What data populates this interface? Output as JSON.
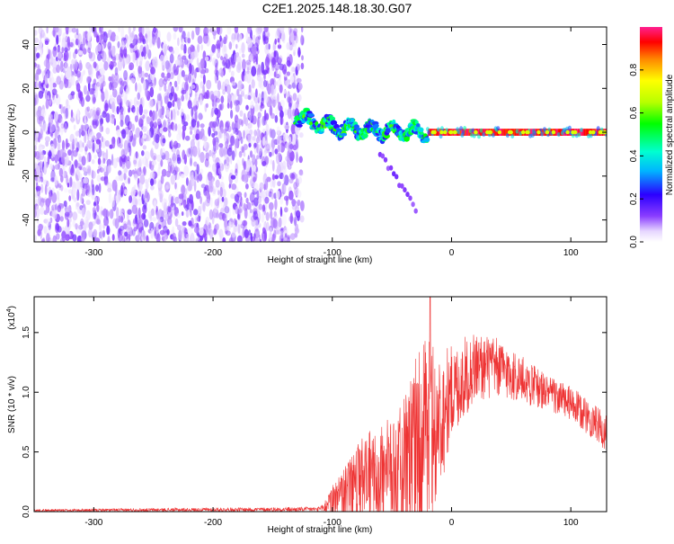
{
  "page": {
    "title": "C2E1.2025.148.18.30.G07"
  },
  "chart_data": [
    {
      "type": "heatmap",
      "name": "spectrogram",
      "xlabel": "Height of straight line (km)",
      "ylabel": "Frequency (Hz)",
      "xlim": [
        -350,
        130
      ],
      "ylim": [
        -50,
        48
      ],
      "xticks": [
        -300,
        -200,
        -100,
        0,
        100
      ],
      "yticks": [
        -40,
        -20,
        0,
        20,
        40
      ],
      "colorbar": {
        "label": "Normalized spectral amplitude",
        "range": [
          0,
          1
        ],
        "ticks": [
          0.0,
          0.2,
          0.4,
          0.6,
          0.8
        ]
      },
      "regions": [
        {
          "description": "scattered low-amplitude noise",
          "x_range": [
            -350,
            -125
          ],
          "y_range": [
            -50,
            48
          ],
          "amplitude": [
            0.02,
            0.15
          ]
        },
        {
          "description": "signal band with fluctuating frequency",
          "x_range": [
            -130,
            -20
          ],
          "y_range": [
            -5,
            10
          ],
          "amplitude": [
            0.2,
            0.6
          ]
        },
        {
          "description": "stable carrier near 0 Hz",
          "x_range": [
            -20,
            130
          ],
          "y_range": [
            -3,
            3
          ],
          "amplitude": [
            0.6,
            1.0
          ]
        },
        {
          "description": "descending streak",
          "x_range": [
            -60,
            -30
          ],
          "y_range": [
            -35,
            -10
          ],
          "amplitude": [
            0.1,
            0.15
          ]
        }
      ]
    },
    {
      "type": "line",
      "name": "snr",
      "xlabel": "Height of straight line (km)",
      "ylabel": "SNR (10 * v/v)",
      "multiplier": "(x10",
      "multiplier_exp": "4",
      "multiplier_close": ")",
      "xlim": [
        -350,
        130
      ],
      "ylim": [
        0,
        1.8
      ],
      "xticks": [
        -300,
        -200,
        -100,
        0,
        100
      ],
      "yticks": [
        0.0,
        0.5,
        1.0,
        1.5
      ],
      "ytick_labels": [
        "0.0",
        "0.5",
        "1.0",
        "1.5"
      ],
      "color": "#ee3333",
      "envelope": [
        {
          "x": -350,
          "base": 0.01,
          "amp": 0.01
        },
        {
          "x": -110,
          "base": 0.02,
          "amp": 0.02
        },
        {
          "x": -100,
          "base": 0.08,
          "amp": 0.12
        },
        {
          "x": -80,
          "base": 0.18,
          "amp": 0.35
        },
        {
          "x": -60,
          "base": 0.25,
          "amp": 0.4
        },
        {
          "x": -40,
          "base": 0.35,
          "amp": 0.6
        },
        {
          "x": -30,
          "base": 0.45,
          "amp": 0.75
        },
        {
          "x": -20,
          "base": 0.6,
          "amp": 0.9
        },
        {
          "x": -10,
          "base": 0.75,
          "amp": 0.6
        },
        {
          "x": 0,
          "base": 1.0,
          "amp": 0.4
        },
        {
          "x": 20,
          "base": 1.22,
          "amp": 0.3
        },
        {
          "x": 40,
          "base": 1.2,
          "amp": 0.25
        },
        {
          "x": 60,
          "base": 1.1,
          "amp": 0.2
        },
        {
          "x": 80,
          "base": 1.0,
          "amp": 0.15
        },
        {
          "x": 100,
          "base": 0.9,
          "amp": 0.15
        },
        {
          "x": 120,
          "base": 0.75,
          "amp": 0.15
        },
        {
          "x": 130,
          "base": 0.65,
          "amp": 0.15
        }
      ],
      "peak": {
        "x": -18,
        "y": 1.8
      }
    }
  ]
}
